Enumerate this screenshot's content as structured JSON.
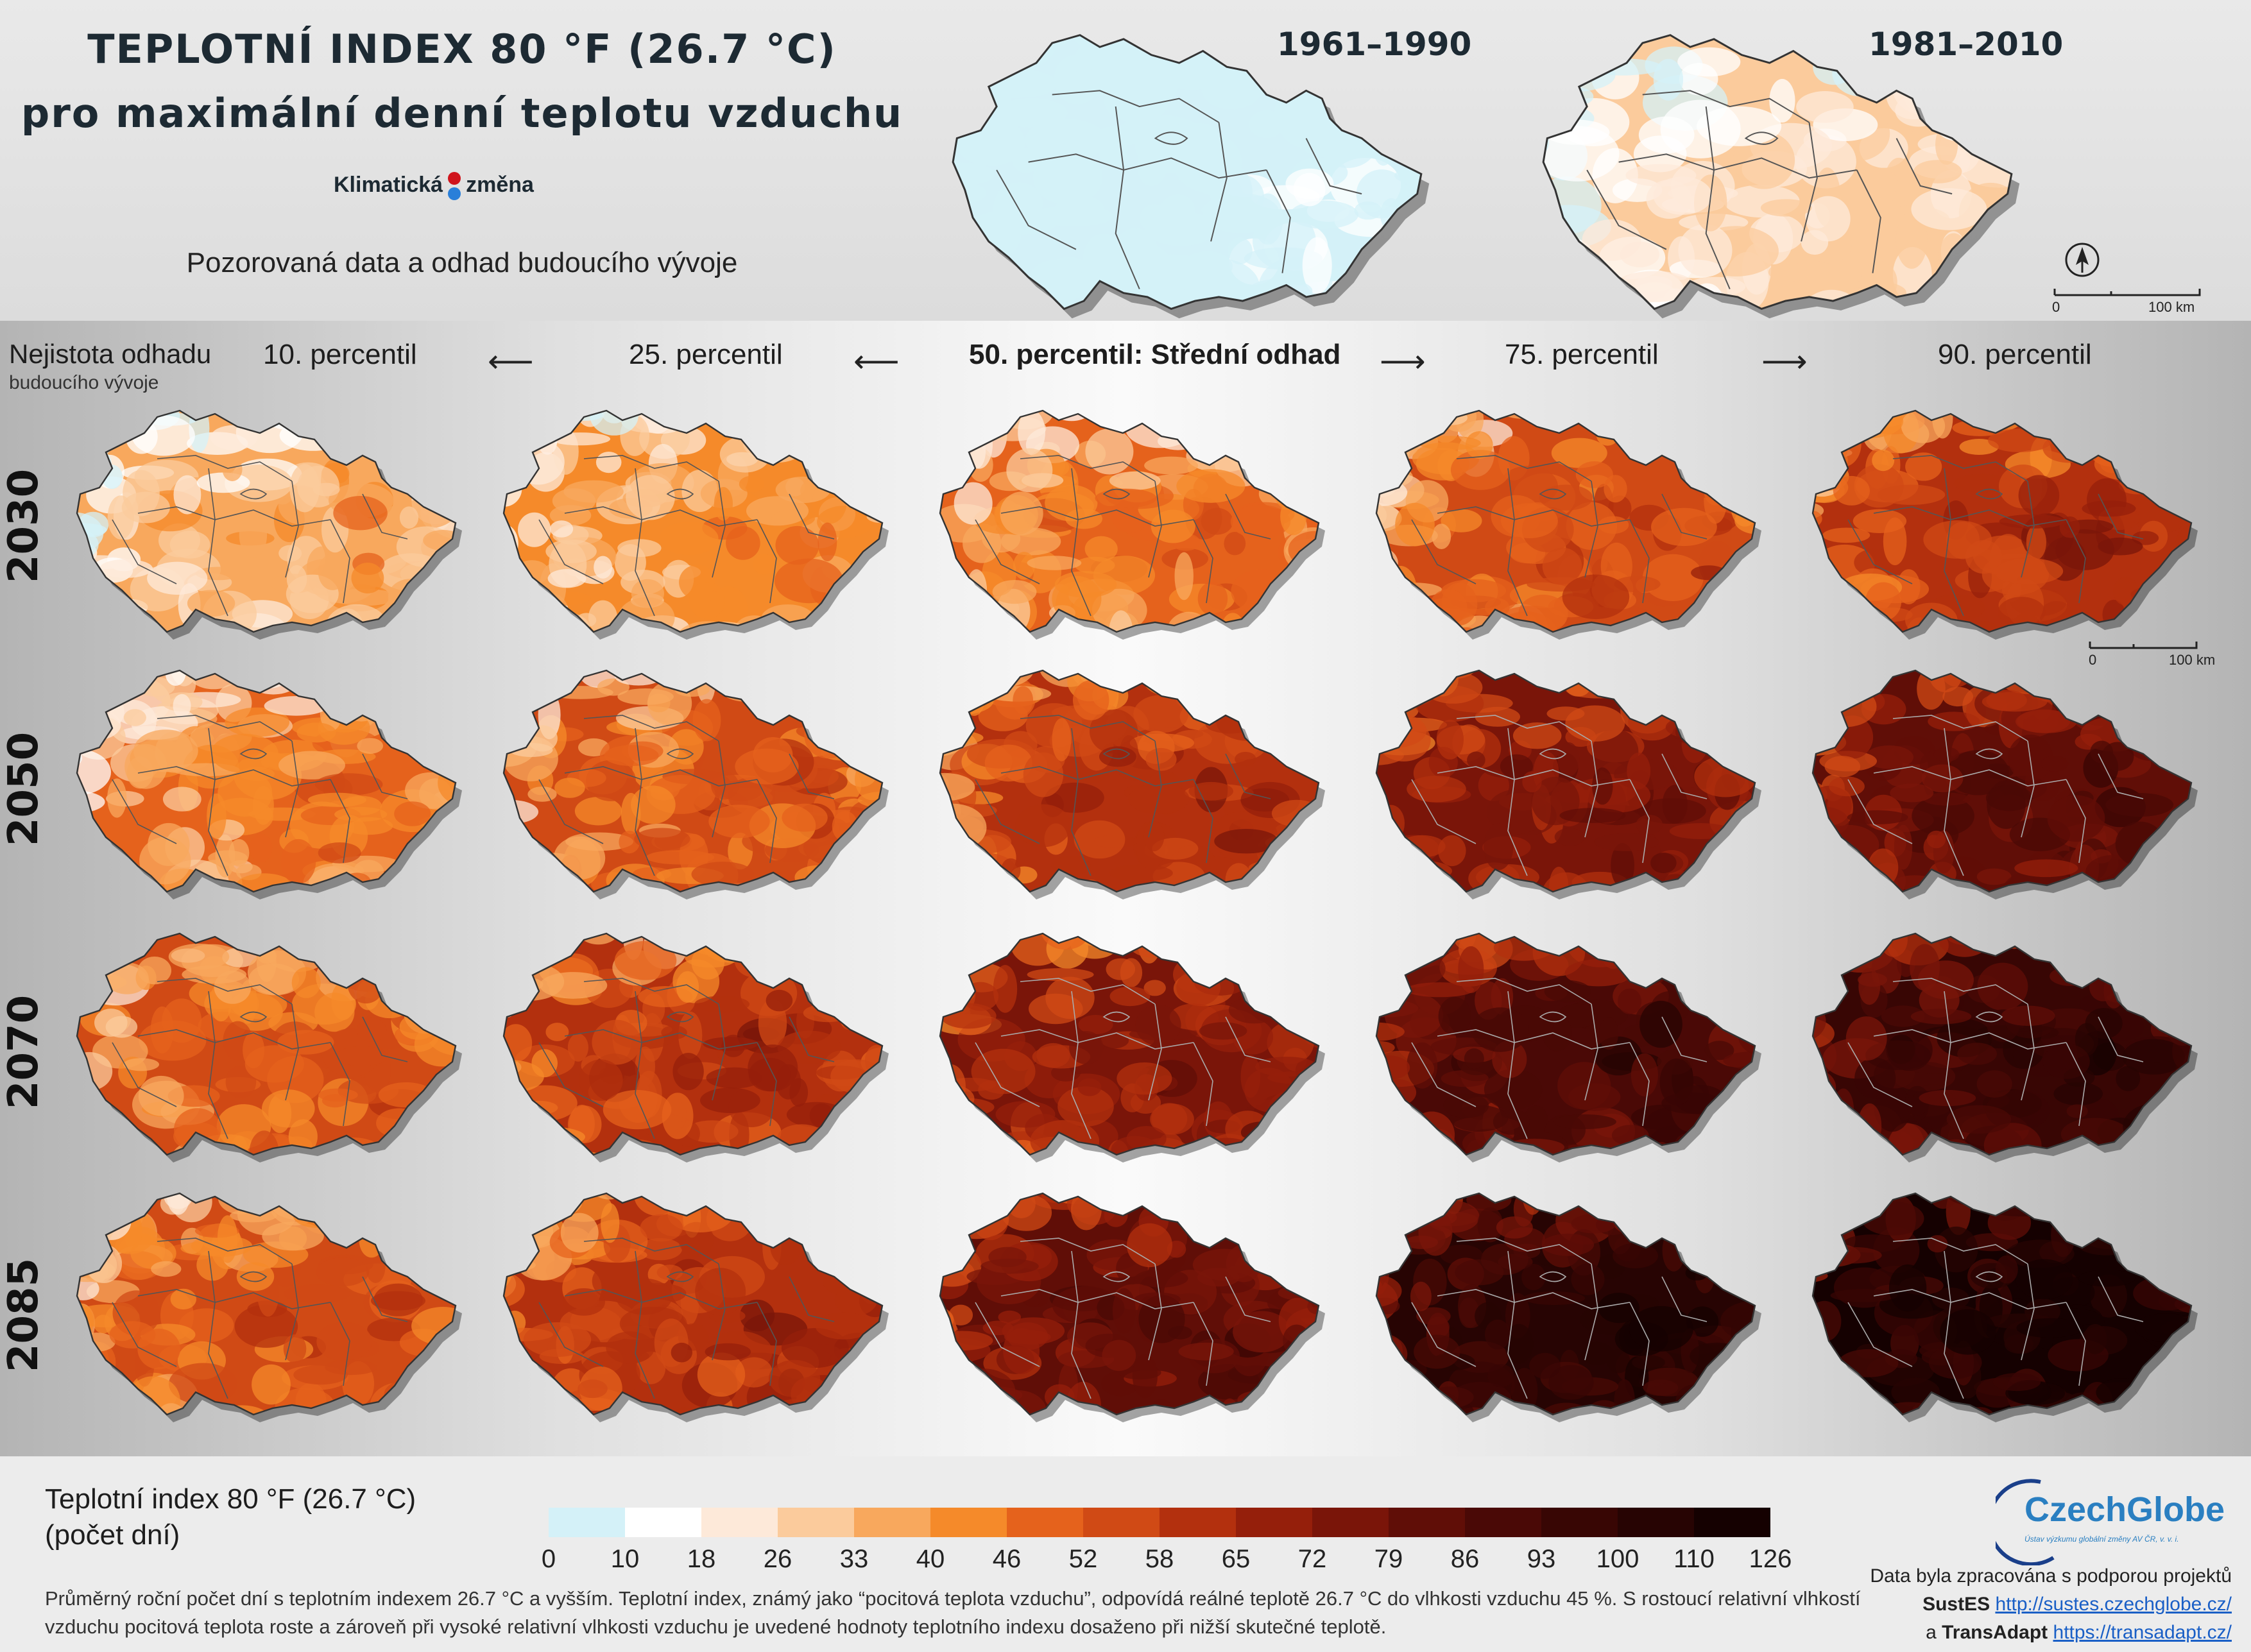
{
  "header": {
    "title_line1": "TEPLOTNÍ INDEX 80 °F (26.7 °C)",
    "title_line2": "pro maximální denní teplotu vzduchu",
    "brand_left": "Klimatická",
    "brand_right": "změna",
    "subtitle": "Pozorovaná data a odhad budoucího vývoje",
    "periods": [
      "1961–1990",
      "1981–2010"
    ],
    "scale_zero": "0",
    "scale_km": "100 km"
  },
  "uncertainty": {
    "title": "Nejistota odhadu",
    "subtitle": "budoucího vývoje"
  },
  "columns": [
    "10. percentil",
    "25. percentil",
    "50. percentil: Střední odhad",
    "75. percentil",
    "90. percentil"
  ],
  "rows": [
    "2030",
    "2050",
    "2070",
    "2085"
  ],
  "map_intensity": {
    "observed": [
      0.05,
      0.2
    ],
    "grid": [
      [
        0.3,
        0.34,
        0.4,
        0.48,
        0.56
      ],
      [
        0.38,
        0.45,
        0.56,
        0.66,
        0.74
      ],
      [
        0.44,
        0.54,
        0.64,
        0.8,
        0.86
      ],
      [
        0.48,
        0.56,
        0.72,
        0.9,
        0.95
      ]
    ]
  },
  "legend": {
    "title": "Teplotní index 80 °F (26.7 °C)",
    "unit": "(počet dní)",
    "ticks": [
      "0",
      "10",
      "18",
      "26",
      "33",
      "40",
      "46",
      "52",
      "58",
      "65",
      "72",
      "79",
      "86",
      "93",
      "100",
      "110",
      "126"
    ],
    "colors": [
      "#d4f1f8",
      "#ffffff",
      "#fde9d9",
      "#fbcb9c",
      "#f8a85d",
      "#f58a2a",
      "#e5621c",
      "#d04a15",
      "#b3300e",
      "#951f0b",
      "#7a1509",
      "#600e07",
      "#4a0906",
      "#380604",
      "#270403",
      "#150101"
    ],
    "description": "Průměrný roční počet dní s teplotním indexem 26.7 °C a vyšším. Teplotní index, známý jako “pocitová teplota vzduchu”, odpovídá reálné teplotě 26.7 °C do vlhkosti vzduchu 45 %. S rostoucí relativní vlhkostí vzduchu pocitová teplota roste a zároveň při vysoké relativní vlhkosti vzduchu je uvedené hodnoty teplotního indexu dosaženo při nižší skutečné teplotě."
  },
  "logo": {
    "name": "CzechGlobe",
    "tagline": "Ústav výzkumu globální změny AV ČR, v. v. i."
  },
  "credits": {
    "line1": "Data byla zpracována s podporou projektů",
    "project1": "SustES",
    "url1": "http://sustes.czechglobe.cz/",
    "and": "a",
    "project2": "TransAdapt",
    "url2": "https://transadapt.cz/"
  }
}
